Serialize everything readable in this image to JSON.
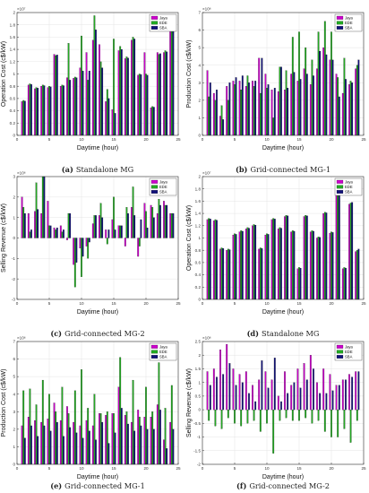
{
  "figure": {
    "colors": {
      "Jaya": "#cc00cc",
      "EDE": "#22aa22",
      "SBA": "#11117a"
    },
    "grid": true,
    "legend_placement": "top-right"
  },
  "chart_data": [
    {
      "type": "bar",
      "caption_letter": "(a)",
      "caption_text": "Standalone MG",
      "xlabel": "Daytime (hour)",
      "ylabel": "Operation Cost (c$/kW)",
      "exponent": "×10⁷",
      "xlim": [
        0,
        25
      ],
      "ylim": [
        0,
        2
      ],
      "xticks": [
        0,
        5,
        10,
        15,
        20,
        25
      ],
      "yticks": [
        0,
        0.2,
        0.4,
        0.6,
        0.8,
        1,
        1.2,
        1.4,
        1.6,
        1.8,
        2
      ],
      "ytick_labels": [
        "0",
        "0.2",
        "0.4",
        "0.6",
        "0.8",
        "1",
        "1.2",
        "1.4",
        "1.6",
        "1.8",
        "2"
      ],
      "x": [
        1,
        2,
        3,
        4,
        5,
        6,
        7,
        8,
        9,
        10,
        11,
        12,
        13,
        14,
        15,
        16,
        17,
        18,
        19,
        20,
        21,
        22,
        23,
        24
      ],
      "series": [
        {
          "name": "Jaya",
          "values": [
            0.55,
            0.82,
            0.76,
            0.8,
            0.78,
            1.32,
            0.8,
            0.94,
            0.93,
            1.1,
            1.35,
            1.55,
            1.48,
            0.55,
            0.42,
            1.38,
            1.25,
            1.55,
            0.98,
            1.35,
            0.45,
            1.35,
            1.35,
            1.88
          ]
        },
        {
          "name": "EDE",
          "values": [
            0.57,
            0.84,
            0.78,
            0.82,
            0.8,
            1.3,
            0.82,
            1.5,
            0.95,
            1.62,
            0.9,
            1.95,
            1.2,
            0.75,
            1.57,
            1.45,
            1.28,
            1.6,
            1.0,
            1.0,
            0.47,
            1.32,
            1.38,
            1.85
          ]
        },
        {
          "name": "SBA",
          "values": [
            0.56,
            0.83,
            0.77,
            0.81,
            0.79,
            1.31,
            0.81,
            0.9,
            0.94,
            1.05,
            1.05,
            1.72,
            1.1,
            0.6,
            0.36,
            1.4,
            1.26,
            1.57,
            0.99,
            0.98,
            0.46,
            1.33,
            1.36,
            1.86
          ]
        }
      ]
    },
    {
      "type": "bar",
      "caption_letter": "(b)",
      "caption_text": "Grid-connected MG-1",
      "xlabel": "Daytime (hour)",
      "ylabel": "Production Cost (c$/kW)",
      "exponent": "×10⁶",
      "xlim": [
        0,
        25
      ],
      "ylim": [
        0,
        7
      ],
      "xticks": [
        0,
        5,
        10,
        15,
        20,
        25
      ],
      "yticks": [
        0,
        1,
        2,
        3,
        4,
        5,
        6,
        7
      ],
      "ytick_labels": [
        "0",
        "1",
        "2",
        "3",
        "4",
        "5",
        "6",
        "7"
      ],
      "x": [
        1,
        2,
        3,
        4,
        5,
        6,
        7,
        8,
        9,
        10,
        11,
        12,
        13,
        14,
        15,
        16,
        17,
        18,
        19,
        20,
        21,
        22,
        23,
        24
      ],
      "series": [
        {
          "name": "Jaya",
          "values": [
            3.7,
            2.4,
            1.1,
            2.8,
            3.1,
            3.1,
            2.8,
            3.1,
            4.4,
            3.5,
            2.6,
            2.5,
            2.6,
            3.5,
            3.1,
            3.8,
            2.9,
            3.8,
            5.0,
            4.3,
            3.5,
            2.4,
            2.9,
            3.8
          ]
        },
        {
          "name": "EDE",
          "values": [
            2.2,
            2.0,
            1.7,
            2.0,
            2.9,
            2.6,
            3.4,
            2.8,
            2.4,
            2.7,
            1.0,
            3.9,
            3.7,
            5.6,
            5.9,
            5.0,
            4.3,
            5.9,
            6.5,
            5.9,
            3.3,
            4.4,
            3.1,
            4.0
          ]
        },
        {
          "name": "SBA",
          "values": [
            3.0,
            2.6,
            0.9,
            3.0,
            3.3,
            3.4,
            3.0,
            3.1,
            4.4,
            2.9,
            2.7,
            3.9,
            2.7,
            3.6,
            3.2,
            3.5,
            3.4,
            4.8,
            4.6,
            4.3,
            2.2,
            3.2,
            3.0,
            4.3
          ]
        }
      ]
    },
    {
      "type": "bar",
      "caption_letter": "(c)",
      "caption_text": "Grid-connected MG-2",
      "xlabel": "Daytime (hour)",
      "ylabel": "Selling Revenue (c$/kW)",
      "exponent": "×10⁶",
      "xlim": [
        0,
        25
      ],
      "ylim": [
        -3,
        3
      ],
      "xticks": [
        0,
        5,
        10,
        15,
        20,
        25
      ],
      "yticks": [
        -3,
        -2,
        -1,
        0,
        1,
        2,
        3
      ],
      "ytick_labels": [
        "-3",
        "-2",
        "-1",
        "0",
        "1",
        "2",
        "3"
      ],
      "x": [
        1,
        2,
        3,
        4,
        5,
        6,
        7,
        8,
        9,
        10,
        11,
        12,
        13,
        14,
        15,
        16,
        17,
        18,
        19,
        20,
        21,
        22,
        23,
        24
      ],
      "series": [
        {
          "name": "Jaya",
          "values": [
            2.0,
            1.2,
            1.3,
            1.2,
            1.8,
            0.5,
            0.6,
            -0.1,
            -1.3,
            -0.5,
            -0.4,
            0.7,
            1.1,
            0.4,
            0.9,
            0.6,
            -0.4,
            1.5,
            -0.9,
            1.7,
            1.6,
            1.2,
            1.8,
            1.2
          ]
        },
        {
          "name": "EDE",
          "values": [
            1.5,
            0.3,
            2.7,
            3.0,
            0.6,
            0.4,
            0.3,
            1.2,
            -2.4,
            -1.9,
            -1.0,
            1.1,
            1.7,
            -0.3,
            2.0,
            0.6,
            1.5,
            2.5,
            -0.4,
            1.3,
            1.5,
            1.9,
            1.6,
            1.2
          ]
        },
        {
          "name": "SBA",
          "values": [
            1.2,
            0.4,
            1.4,
            3.0,
            0.6,
            0.5,
            0.4,
            1.2,
            -1.2,
            -0.9,
            -0.2,
            1.1,
            1.0,
            0.4,
            0.4,
            0.6,
            1.2,
            1.1,
            0.9,
            0.5,
            1.0,
            1.6,
            1.6,
            1.2
          ]
        }
      ]
    },
    {
      "type": "bar",
      "caption_letter": "(d)",
      "caption_text": "Standalone MG",
      "xlabel": "Daytime (hour)",
      "ylabel": "Operation Cost (c$/kW)",
      "exponent": "×10⁷",
      "xlim": [
        0,
        25
      ],
      "ylim": [
        0,
        2
      ],
      "xticks": [
        0,
        5,
        10,
        15,
        20,
        25
      ],
      "yticks": [
        0,
        0.2,
        0.4,
        0.6,
        0.8,
        1,
        1.2,
        1.4,
        1.6,
        1.8,
        2
      ],
      "ytick_labels": [
        "0",
        "0.2",
        "0.4",
        "0.6",
        "0.8",
        "1",
        "1.2",
        "1.4",
        "1.6",
        "1.8",
        "2"
      ],
      "x": [
        1,
        2,
        3,
        4,
        5,
        6,
        7,
        8,
        9,
        10,
        11,
        12,
        13,
        14,
        15,
        16,
        17,
        18,
        19,
        20,
        21,
        22,
        23,
        24
      ],
      "series": [
        {
          "name": "Jaya",
          "values": [
            1.3,
            1.28,
            0.82,
            0.8,
            1.05,
            1.1,
            1.15,
            1.2,
            0.82,
            1.05,
            1.3,
            1.15,
            1.35,
            1.1,
            0.5,
            1.35,
            1.1,
            1.0,
            1.4,
            1.08,
            1.85,
            0.5,
            1.55,
            0.78
          ]
        },
        {
          "name": "EDE",
          "values": [
            1.32,
            1.3,
            0.84,
            0.82,
            1.07,
            1.12,
            1.17,
            1.22,
            0.84,
            1.07,
            1.32,
            1.17,
            1.37,
            1.12,
            0.52,
            1.37,
            1.12,
            1.02,
            1.42,
            1.1,
            1.88,
            0.52,
            1.57,
            0.8
          ]
        },
        {
          "name": "SBA",
          "values": [
            1.31,
            1.29,
            0.83,
            0.81,
            1.06,
            1.11,
            1.16,
            1.21,
            0.83,
            1.06,
            1.31,
            1.16,
            1.36,
            1.11,
            0.51,
            1.36,
            1.11,
            1.01,
            1.41,
            1.09,
            1.9,
            0.51,
            1.58,
            0.82
          ]
        }
      ]
    },
    {
      "type": "bar",
      "caption_letter": "(e)",
      "caption_text": "Grid-connected MG-1",
      "xlabel": "Daytime (hour)",
      "ylabel": "Production Cost (c$/kW)",
      "exponent": "×10⁶",
      "xlim": [
        0,
        25
      ],
      "ylim": [
        0,
        7
      ],
      "xticks": [
        0,
        5,
        10,
        15,
        20,
        25
      ],
      "yticks": [
        0,
        1,
        2,
        3,
        4,
        5,
        6,
        7
      ],
      "ytick_labels": [
        "0",
        "1",
        "2",
        "3",
        "4",
        "5",
        "6",
        "7"
      ],
      "x": [
        1,
        2,
        3,
        4,
        5,
        6,
        7,
        8,
        9,
        10,
        11,
        12,
        13,
        14,
        15,
        16,
        17,
        18,
        19,
        20,
        21,
        22,
        23,
        24
      ],
      "series": [
        {
          "name": "Jaya",
          "values": [
            2.2,
            2.7,
            2.5,
            2.4,
            2.6,
            3.5,
            2.5,
            3.3,
            2.4,
            2.2,
            2.5,
            2.2,
            2.9,
            2.8,
            2.9,
            4.4,
            2.8,
            2.4,
            3.1,
            2.7,
            2.7,
            3.4,
            1.4,
            2.4
          ]
        },
        {
          "name": "EDE",
          "values": [
            4.2,
            4.3,
            3.4,
            4.8,
            4.0,
            3.0,
            4.4,
            2.9,
            4.2,
            5.4,
            3.2,
            4.0,
            2.9,
            3.0,
            2.9,
            6.1,
            3.0,
            4.8,
            2.7,
            4.4,
            3.0,
            5.8,
            3.2,
            4.5
          ]
        },
        {
          "name": "SBA",
          "values": [
            1.5,
            2.2,
            1.6,
            2.2,
            1.9,
            2.4,
            1.6,
            2.1,
            1.8,
            1.5,
            1.9,
            1.4,
            2.4,
            1.2,
            1.8,
            3.2,
            2.3,
            1.9,
            2.2,
            2.0,
            2.0,
            3.1,
            0.9,
            2.0
          ]
        }
      ]
    },
    {
      "type": "bar",
      "caption_letter": "(f)",
      "caption_text": "Grid-connected MG-2",
      "xlabel": "Daytime (hour)",
      "ylabel": "Selling Revenue (c$/kW)",
      "exponent": "×10⁶",
      "xlim": [
        0,
        25
      ],
      "ylim": [
        -2,
        2.5
      ],
      "xticks": [
        0,
        5,
        10,
        15,
        20,
        25
      ],
      "yticks": [
        -2,
        -1.5,
        -1,
        -0.5,
        0,
        0.5,
        1,
        1.5,
        2,
        2.5
      ],
      "ytick_labels": [
        "-2",
        "-1.5",
        "-1",
        "-0.5",
        "0",
        "0.5",
        "1",
        "1.5",
        "2",
        "2.5"
      ],
      "x": [
        1,
        2,
        3,
        4,
        5,
        6,
        7,
        8,
        9,
        10,
        11,
        12,
        13,
        14,
        15,
        16,
        17,
        18,
        19,
        20,
        21,
        22,
        23,
        24
      ],
      "series": [
        {
          "name": "Jaya",
          "values": [
            1.4,
            1.5,
            2.2,
            2.4,
            1.5,
            1.3,
            1.4,
            0.9,
            1.1,
            1.4,
            1.1,
            0.5,
            1.4,
            0.9,
            1.5,
            1.7,
            2.0,
            1.0,
            1.5,
            1.3,
            0.9,
            1.1,
            1.3,
            1.4
          ]
        },
        {
          "name": "EDE",
          "values": [
            -0.4,
            -0.6,
            -0.7,
            -0.3,
            -0.5,
            -0.6,
            -0.5,
            -0.4,
            -0.8,
            -0.5,
            -1.6,
            -0.4,
            -0.3,
            -0.4,
            -0.4,
            -0.3,
            -0.5,
            -0.4,
            -0.8,
            -1.0,
            -1.0,
            -0.7,
            -1.2,
            -0.4
          ]
        },
        {
          "name": "SBA",
          "values": [
            0.9,
            1.2,
            1.3,
            1.7,
            0.9,
            1.0,
            0.6,
            0.3,
            1.8,
            0.8,
            1.9,
            0.3,
            0.6,
            1.0,
            0.8,
            1.1,
            1.5,
            0.6,
            0.6,
            0.7,
            0.9,
            1.1,
            1.2,
            1.4
          ]
        }
      ]
    }
  ]
}
